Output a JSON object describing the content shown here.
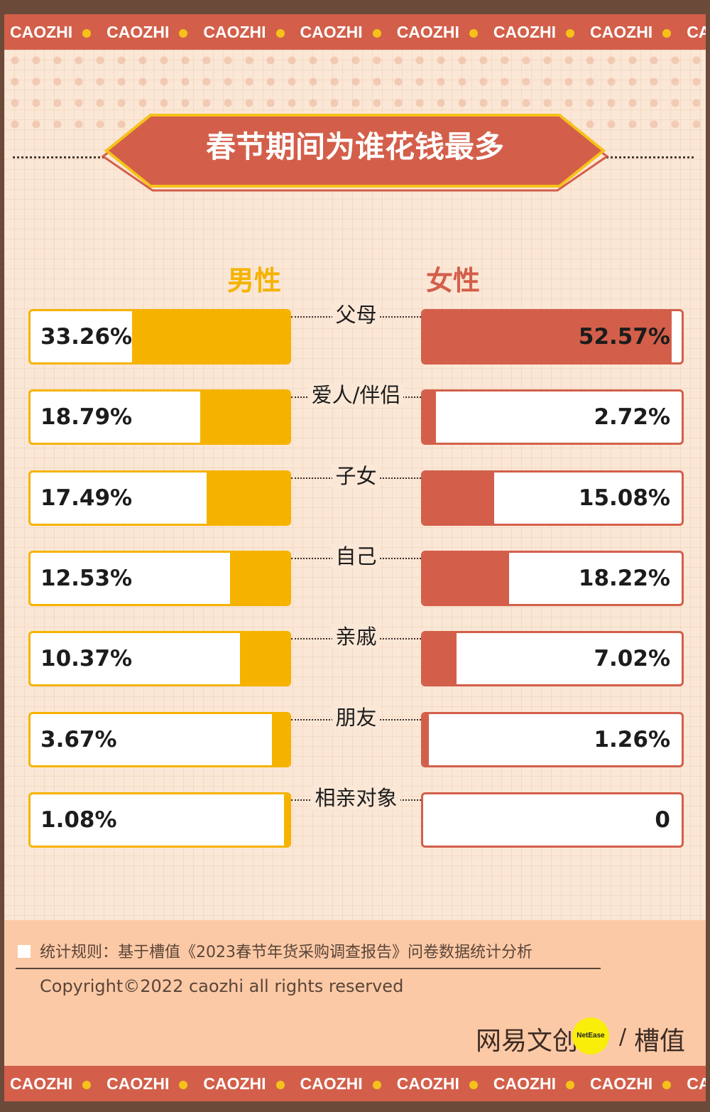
{
  "brand_strip": {
    "unit": "CAOZHI",
    "repeat": 8
  },
  "title": "春节期间为谁花钱最多",
  "colors": {
    "male": "#f5b300",
    "female": "#d35f4a",
    "background": "#fbe7d6",
    "footer": "#fcc9a6",
    "strip": "#d35f4a"
  },
  "legend": {
    "male": "男性",
    "female": "女性"
  },
  "chart_data": {
    "type": "bar",
    "orientation": "horizontal-butterfly",
    "categories": [
      "父母",
      "爱人/伴侣",
      "子女",
      "自己",
      "亲戚",
      "朋友",
      "相亲对象"
    ],
    "series": [
      {
        "name": "男性",
        "values": [
          33.26,
          18.79,
          17.49,
          12.53,
          10.37,
          3.67,
          1.08
        ],
        "labels": [
          "33.26%",
          "18.79%",
          "17.49%",
          "12.53%",
          "10.37%",
          "3.67%",
          "1.08%"
        ]
      },
      {
        "name": "女性",
        "values": [
          52.57,
          2.72,
          15.08,
          18.22,
          7.02,
          1.26,
          0
        ],
        "labels": [
          "52.57%",
          "2.72%",
          "15.08%",
          "18.22%",
          "7.02%",
          "1.26%",
          "0"
        ]
      }
    ],
    "title": "春节期间为谁花钱最多",
    "xlim": [
      0,
      55
    ]
  },
  "footer": {
    "note": "统计规则：基于槽值《2023春节年货采购调查报告》问卷数据统计分析",
    "copyright": "Copyright©2022 caozhi all rights reserved",
    "logo_text_a": "网易文创",
    "logo_circle": "NetEase",
    "logo_slash": "/",
    "logo_text_b": "槽值"
  }
}
